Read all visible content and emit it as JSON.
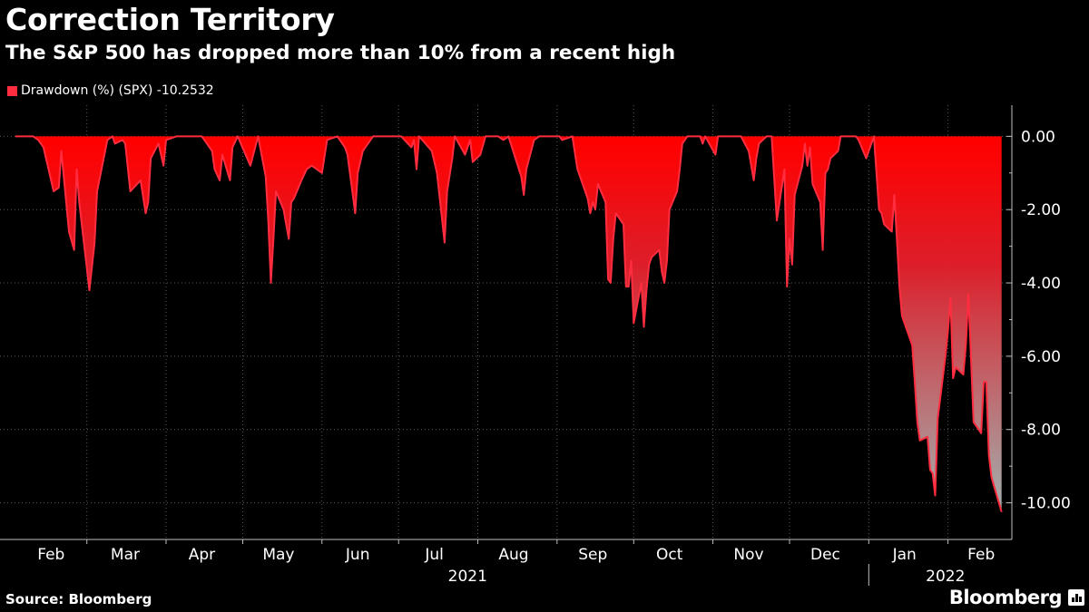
{
  "header": {
    "title": "Correction Territory",
    "subtitle": "The S&P 500 has dropped more than 10% from a recent high"
  },
  "legend": {
    "label": "Drawdown (%) (SPX) -10.2532",
    "color": "#ff2d3f"
  },
  "footer": {
    "source": "Source: Bloomberg",
    "brand": "Bloomberg"
  },
  "chart_data": {
    "type": "area",
    "title": "Correction Territory",
    "subtitle": "The S&P 500 has dropped more than 10% from a recent high",
    "series": [
      {
        "name": "Drawdown (%) (SPX)",
        "last_value": -10.2532,
        "color": "#ff2d3f",
        "points": [
          [
            "2021-02-01",
            0.0
          ],
          [
            "2021-02-03",
            0.0
          ],
          [
            "2021-02-08",
            0.0
          ],
          [
            "2021-02-10",
            -0.1
          ],
          [
            "2021-02-12",
            -0.3
          ],
          [
            "2021-02-16",
            -1.5
          ],
          [
            "2021-02-18",
            -1.4
          ],
          [
            "2021-02-19",
            -0.4
          ],
          [
            "2021-02-22",
            -2.6
          ],
          [
            "2021-02-24",
            -3.1
          ],
          [
            "2021-02-25",
            -0.9
          ],
          [
            "2021-02-26",
            -1.8
          ],
          [
            "2021-03-02",
            -4.2
          ],
          [
            "2021-03-04",
            -2.9
          ],
          [
            "2021-03-05",
            -1.5
          ],
          [
            "2021-03-09",
            -0.1
          ],
          [
            "2021-03-11",
            0.0
          ],
          [
            "2021-03-12",
            -0.2
          ],
          [
            "2021-03-15",
            -0.1
          ],
          [
            "2021-03-16",
            -0.2
          ],
          [
            "2021-03-18",
            -1.5
          ],
          [
            "2021-03-22",
            -1.2
          ],
          [
            "2021-03-24",
            -2.1
          ],
          [
            "2021-03-25",
            -1.8
          ],
          [
            "2021-03-26",
            -0.6
          ],
          [
            "2021-03-29",
            -0.2
          ],
          [
            "2021-03-31",
            -0.8
          ],
          [
            "2021-04-01",
            -0.1
          ],
          [
            "2021-04-05",
            0.0
          ],
          [
            "2021-04-15",
            0.0
          ],
          [
            "2021-04-19",
            -0.4
          ],
          [
            "2021-04-20",
            -0.9
          ],
          [
            "2021-04-22",
            -1.2
          ],
          [
            "2021-04-23",
            -0.5
          ],
          [
            "2021-04-26",
            -1.2
          ],
          [
            "2021-04-27",
            -0.3
          ],
          [
            "2021-04-29",
            0.0
          ],
          [
            "2021-05-04",
            -0.8
          ],
          [
            "2021-05-07",
            0.0
          ],
          [
            "2021-05-10",
            -1.1
          ],
          [
            "2021-05-11",
            -2.3
          ],
          [
            "2021-05-12",
            -4.0
          ],
          [
            "2021-05-13",
            -2.8
          ],
          [
            "2021-05-14",
            -1.5
          ],
          [
            "2021-05-17",
            -2.0
          ],
          [
            "2021-05-19",
            -2.8
          ],
          [
            "2021-05-20",
            -1.8
          ],
          [
            "2021-05-21",
            -1.7
          ],
          [
            "2021-05-24",
            -1.2
          ],
          [
            "2021-05-26",
            -0.9
          ],
          [
            "2021-05-28",
            -0.8
          ],
          [
            "2021-06-01",
            -1.0
          ],
          [
            "2021-06-03",
            -0.1
          ],
          [
            "2021-06-07",
            0.0
          ],
          [
            "2021-06-10",
            -0.3
          ],
          [
            "2021-06-11",
            -0.5
          ],
          [
            "2021-06-14",
            -2.1
          ],
          [
            "2021-06-15",
            -1.0
          ],
          [
            "2021-06-17",
            -0.4
          ],
          [
            "2021-06-21",
            0.0
          ],
          [
            "2021-06-30",
            0.0
          ],
          [
            "2021-07-02",
            0.0
          ],
          [
            "2021-07-06",
            -0.3
          ],
          [
            "2021-07-07",
            -0.1
          ],
          [
            "2021-07-08",
            -0.9
          ],
          [
            "2021-07-09",
            0.0
          ],
          [
            "2021-07-14",
            -0.4
          ],
          [
            "2021-07-16",
            -1.0
          ],
          [
            "2021-07-19",
            -2.9
          ],
          [
            "2021-07-20",
            -1.5
          ],
          [
            "2021-07-22",
            -0.6
          ],
          [
            "2021-07-23",
            0.0
          ],
          [
            "2021-07-27",
            -0.5
          ],
          [
            "2021-07-29",
            -0.1
          ],
          [
            "2021-07-30",
            -0.7
          ],
          [
            "2021-08-02",
            -0.5
          ],
          [
            "2021-08-04",
            0.0
          ],
          [
            "2021-08-09",
            0.0
          ],
          [
            "2021-08-11",
            -0.1
          ],
          [
            "2021-08-13",
            0.0
          ],
          [
            "2021-08-18",
            -1.1
          ],
          [
            "2021-08-19",
            -1.6
          ],
          [
            "2021-08-20",
            -0.9
          ],
          [
            "2021-08-23",
            -0.1
          ],
          [
            "2021-08-25",
            0.0
          ],
          [
            "2021-09-02",
            0.0
          ],
          [
            "2021-09-03",
            -0.1
          ],
          [
            "2021-09-07",
            0.0
          ],
          [
            "2021-09-09",
            -0.9
          ],
          [
            "2021-09-13",
            -1.7
          ],
          [
            "2021-09-14",
            -2.1
          ],
          [
            "2021-09-15",
            -1.8
          ],
          [
            "2021-09-16",
            -2.0
          ],
          [
            "2021-09-17",
            -1.3
          ],
          [
            "2021-09-20",
            -1.8
          ],
          [
            "2021-09-21",
            -3.9
          ],
          [
            "2021-09-22",
            -4.0
          ],
          [
            "2021-09-23",
            -2.8
          ],
          [
            "2021-09-24",
            -2.1
          ],
          [
            "2021-09-27",
            -2.4
          ],
          [
            "2021-09-28",
            -4.1
          ],
          [
            "2021-09-29",
            -4.1
          ],
          [
            "2021-09-30",
            -3.4
          ],
          [
            "2021-10-01",
            -5.1
          ],
          [
            "2021-10-04",
            -4.0
          ],
          [
            "2021-10-05",
            -5.2
          ],
          [
            "2021-10-06",
            -4.2
          ],
          [
            "2021-10-07",
            -3.5
          ],
          [
            "2021-10-08",
            -3.3
          ],
          [
            "2021-10-11",
            -3.1
          ],
          [
            "2021-10-12",
            -3.7
          ],
          [
            "2021-10-13",
            -4.0
          ],
          [
            "2021-10-14",
            -3.4
          ],
          [
            "2021-10-15",
            -2.0
          ],
          [
            "2021-10-18",
            -1.5
          ],
          [
            "2021-10-19",
            -0.9
          ],
          [
            "2021-10-20",
            -0.2
          ],
          [
            "2021-10-22",
            0.0
          ],
          [
            "2021-10-27",
            0.0
          ],
          [
            "2021-10-28",
            -0.2
          ],
          [
            "2021-10-29",
            0.0
          ],
          [
            "2021-11-02",
            -0.5
          ],
          [
            "2021-11-03",
            0.0
          ],
          [
            "2021-11-04",
            0.0
          ],
          [
            "2021-11-09",
            0.0
          ],
          [
            "2021-11-12",
            0.0
          ],
          [
            "2021-11-15",
            -0.4
          ],
          [
            "2021-11-17",
            -1.2
          ],
          [
            "2021-11-18",
            -0.6
          ],
          [
            "2021-11-19",
            -0.2
          ],
          [
            "2021-11-22",
            0.0
          ],
          [
            "2021-11-24",
            0.0
          ],
          [
            "2021-11-26",
            -2.3
          ],
          [
            "2021-11-29",
            -0.9
          ],
          [
            "2021-11-30",
            -4.1
          ],
          [
            "2021-12-01",
            -2.8
          ],
          [
            "2021-12-02",
            -3.5
          ],
          [
            "2021-12-03",
            -1.6
          ],
          [
            "2021-12-06",
            -0.8
          ],
          [
            "2021-12-07",
            -0.2
          ],
          [
            "2021-12-08",
            -0.8
          ],
          [
            "2021-12-09",
            -0.3
          ],
          [
            "2021-12-10",
            -1.3
          ],
          [
            "2021-12-13",
            -1.8
          ],
          [
            "2021-12-14",
            -3.1
          ],
          [
            "2021-12-15",
            -1.0
          ],
          [
            "2021-12-16",
            -0.9
          ],
          [
            "2021-12-17",
            -0.6
          ],
          [
            "2021-12-20",
            -0.4
          ],
          [
            "2021-12-21",
            0.0
          ],
          [
            "2021-12-27",
            0.0
          ],
          [
            "2021-12-28",
            -0.1
          ],
          [
            "2021-12-31",
            -0.6
          ],
          [
            "2022-01-03",
            0.0
          ],
          [
            "2022-01-05",
            -2.0
          ],
          [
            "2022-01-06",
            -2.1
          ],
          [
            "2022-01-07",
            -2.4
          ],
          [
            "2022-01-10",
            -2.6
          ],
          [
            "2022-01-11",
            -1.6
          ],
          [
            "2022-01-12",
            -2.8
          ],
          [
            "2022-01-13",
            -4.1
          ],
          [
            "2022-01-14",
            -4.9
          ],
          [
            "2022-01-18",
            -5.7
          ],
          [
            "2022-01-19",
            -6.7
          ],
          [
            "2022-01-20",
            -7.8
          ],
          [
            "2022-01-21",
            -8.3
          ],
          [
            "2022-01-24",
            -8.2
          ],
          [
            "2022-01-25",
            -9.1
          ],
          [
            "2022-01-26",
            -9.2
          ],
          [
            "2022-01-27",
            -9.8
          ],
          [
            "2022-01-28",
            -7.7
          ],
          [
            "2022-01-31",
            -6.0
          ],
          [
            "2022-02-01",
            -5.3
          ],
          [
            "2022-02-02",
            -4.4
          ],
          [
            "2022-02-03",
            -6.6
          ],
          [
            "2022-02-04",
            -6.3
          ],
          [
            "2022-02-07",
            -6.5
          ],
          [
            "2022-02-08",
            -5.7
          ],
          [
            "2022-02-09",
            -4.3
          ],
          [
            "2022-02-10",
            -6.0
          ],
          [
            "2022-02-11",
            -7.8
          ],
          [
            "2022-02-14",
            -8.1
          ],
          [
            "2022-02-15",
            -6.7
          ],
          [
            "2022-02-16",
            -6.7
          ],
          [
            "2022-02-17",
            -8.7
          ],
          [
            "2022-02-18",
            -9.3
          ],
          [
            "2022-02-22",
            -10.25
          ]
        ]
      }
    ],
    "xlim": [
      "2021-01-26",
      "2022-02-26"
    ],
    "ylim": [
      -11.0,
      0.85
    ],
    "y_ticks": [
      0,
      -2,
      -4,
      -6,
      -8,
      -10
    ],
    "y_tick_labels": [
      "0.00",
      "-2.00",
      "-4.00",
      "-6.00",
      "-8.00",
      "-10.00"
    ],
    "x_ticks": [
      {
        "label": "Feb",
        "date": "2021-02-15"
      },
      {
        "label": "Mar",
        "date": "2021-03-16"
      },
      {
        "label": "Apr",
        "date": "2021-04-15"
      },
      {
        "label": "May",
        "date": "2021-05-15"
      },
      {
        "label": "Jun",
        "date": "2021-06-15"
      },
      {
        "label": "Jul",
        "date": "2021-07-15"
      },
      {
        "label": "Aug",
        "date": "2021-08-15"
      },
      {
        "label": "Sep",
        "date": "2021-09-15"
      },
      {
        "label": "Oct",
        "date": "2021-10-15"
      },
      {
        "label": "Nov",
        "date": "2021-11-15"
      },
      {
        "label": "Dec",
        "date": "2021-12-15"
      },
      {
        "label": "Jan",
        "date": "2022-01-15"
      },
      {
        "label": "Feb",
        "date": "2022-02-14"
      }
    ],
    "x_gridlines": [
      "2021-03-01",
      "2021-04-01",
      "2021-05-01",
      "2021-06-01",
      "2021-07-01",
      "2021-08-01",
      "2021-09-01",
      "2021-10-01",
      "2021-11-01",
      "2021-12-01",
      "2022-01-01",
      "2022-02-01"
    ],
    "year_labels": [
      {
        "label": "2021",
        "date": "2021-07-28"
      },
      {
        "label": "2022",
        "date": "2022-01-31"
      }
    ],
    "year_separator": "2022-01-01",
    "grid": true,
    "y_axis_side": "right",
    "legend_position": "top-left"
  }
}
